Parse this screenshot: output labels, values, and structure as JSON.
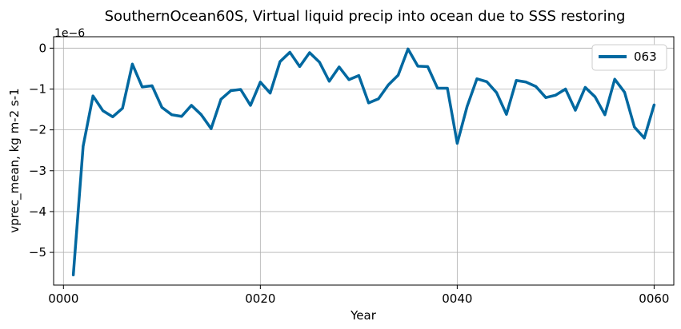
{
  "chart_data": {
    "type": "line",
    "title": "SouthernOcean60S, Virtual liquid precip into ocean due to SSS restoring",
    "xlabel": "Year",
    "ylabel": "vprec_mean, kg m-2 s-1",
    "offset_text": "1e−6",
    "xlim": [
      -1,
      62
    ],
    "ylim": [
      -5.8,
      0.28
    ],
    "x_ticks": [
      0,
      20,
      40,
      60
    ],
    "x_tick_labels": [
      "0000",
      "0020",
      "0040",
      "0060"
    ],
    "y_ticks": [
      0,
      -1,
      -2,
      -3,
      -4,
      -5
    ],
    "y_tick_labels": [
      "0",
      "−1",
      "−2",
      "−3",
      "−4",
      "−5"
    ],
    "grid": true,
    "legend_position": "top-right",
    "x": [
      1,
      2,
      3,
      4,
      5,
      6,
      7,
      8,
      9,
      10,
      11,
      12,
      13,
      14,
      15,
      16,
      17,
      18,
      19,
      20,
      21,
      22,
      23,
      24,
      25,
      26,
      27,
      28,
      29,
      30,
      31,
      32,
      33,
      34,
      35,
      36,
      37,
      38,
      39,
      40,
      41,
      42,
      43,
      44,
      45,
      46,
      47,
      48,
      49,
      50,
      51,
      52,
      53,
      54,
      55,
      56,
      57,
      58,
      59,
      60
    ],
    "series": [
      {
        "name": "063",
        "color": "#0068a0",
        "values": [
          -5.55,
          -2.4,
          -1.17,
          -1.53,
          -1.68,
          -1.47,
          -0.39,
          -0.95,
          -0.92,
          -1.45,
          -1.63,
          -1.67,
          -1.4,
          -1.63,
          -1.97,
          -1.25,
          -1.04,
          -1.01,
          -1.4,
          -0.83,
          -1.1,
          -0.33,
          -0.1,
          -0.45,
          -0.11,
          -0.34,
          -0.81,
          -0.46,
          -0.77,
          -0.67,
          -1.34,
          -1.24,
          -0.9,
          -0.66,
          -0.02,
          -0.44,
          -0.45,
          -0.98,
          -0.98,
          -2.33,
          -1.43,
          -0.75,
          -0.82,
          -1.09,
          -1.62,
          -0.79,
          -0.83,
          -0.94,
          -1.21,
          -1.15,
          -1.0,
          -1.52,
          -0.96,
          -1.19,
          -1.63,
          -0.76,
          -1.08,
          -1.93,
          -2.2,
          -1.39
        ]
      }
    ]
  }
}
